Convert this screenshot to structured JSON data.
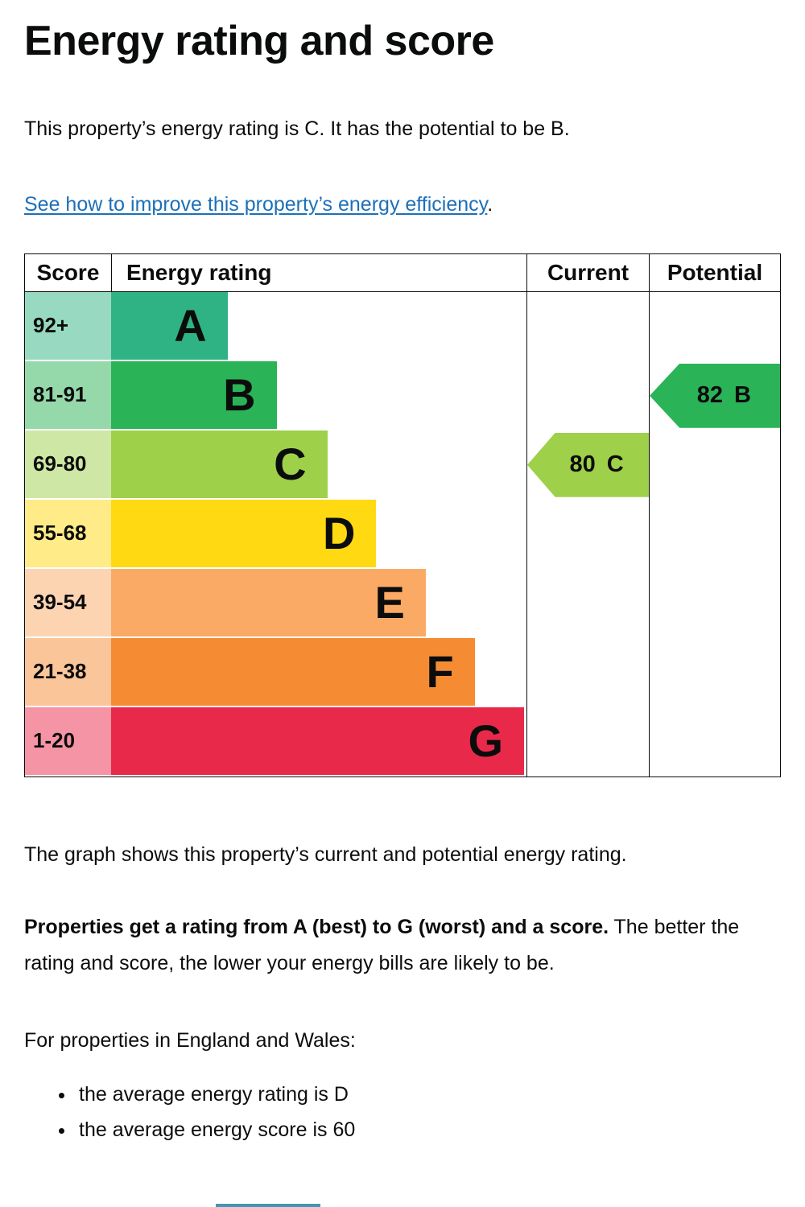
{
  "page": {
    "title": "Energy rating and score",
    "intro": "This property’s energy rating is C. It has the potential to be B.",
    "improve_link": "See how to improve this property’s energy efficiency",
    "improve_suffix": ".",
    "graph_caption": "The graph shows this property’s current and potential energy rating.",
    "explainer_bold": "Properties get a rating from A (best) to G (worst) and a score.",
    "explainer_rest": " The better the rating and score, the lower your energy bills are likely to be.",
    "regions_intro": "For properties in England and Wales:",
    "bullets": [
      "the average energy rating is D",
      "the average energy score is 60"
    ]
  },
  "chart_data": {
    "type": "bar",
    "title": "Energy rating and score",
    "columns": [
      "Score",
      "Energy rating",
      "Current",
      "Potential"
    ],
    "bands": [
      {
        "score": "92+",
        "letter": "A",
        "color": "#30b384",
        "tint": "#97d9c1",
        "width_pct": 23
      },
      {
        "score": "81-91",
        "letter": "B",
        "color": "#2bb357",
        "tint": "#95d9ab",
        "width_pct": 34.8
      },
      {
        "score": "69-80",
        "letter": "C",
        "color": "#9ed04a",
        "tint": "#cfe7a4",
        "width_pct": 47
      },
      {
        "score": "55-68",
        "letter": "D",
        "color": "#ffd912",
        "tint": "#ffec88",
        "width_pct": 58.8
      },
      {
        "score": "39-54",
        "letter": "E",
        "color": "#fbaa66",
        "tint": "#fdd4b2",
        "width_pct": 70.7
      },
      {
        "score": "21-38",
        "letter": "F",
        "color": "#f58c34",
        "tint": "#fac599",
        "width_pct": 82.5
      },
      {
        "score": "1-20",
        "letter": "G",
        "color": "#e9294a",
        "tint": "#f494a4",
        "width_pct": 94.4
      }
    ],
    "current": {
      "value": "80",
      "letter": "C",
      "band": "C"
    },
    "potential": {
      "value": "82",
      "letter": "B",
      "band": "B"
    }
  },
  "colors": {
    "text": "#0b0c0c",
    "link": "#1d70b8",
    "table_border": "#0b0c0c",
    "bottom_sliver": "#4496b4"
  }
}
